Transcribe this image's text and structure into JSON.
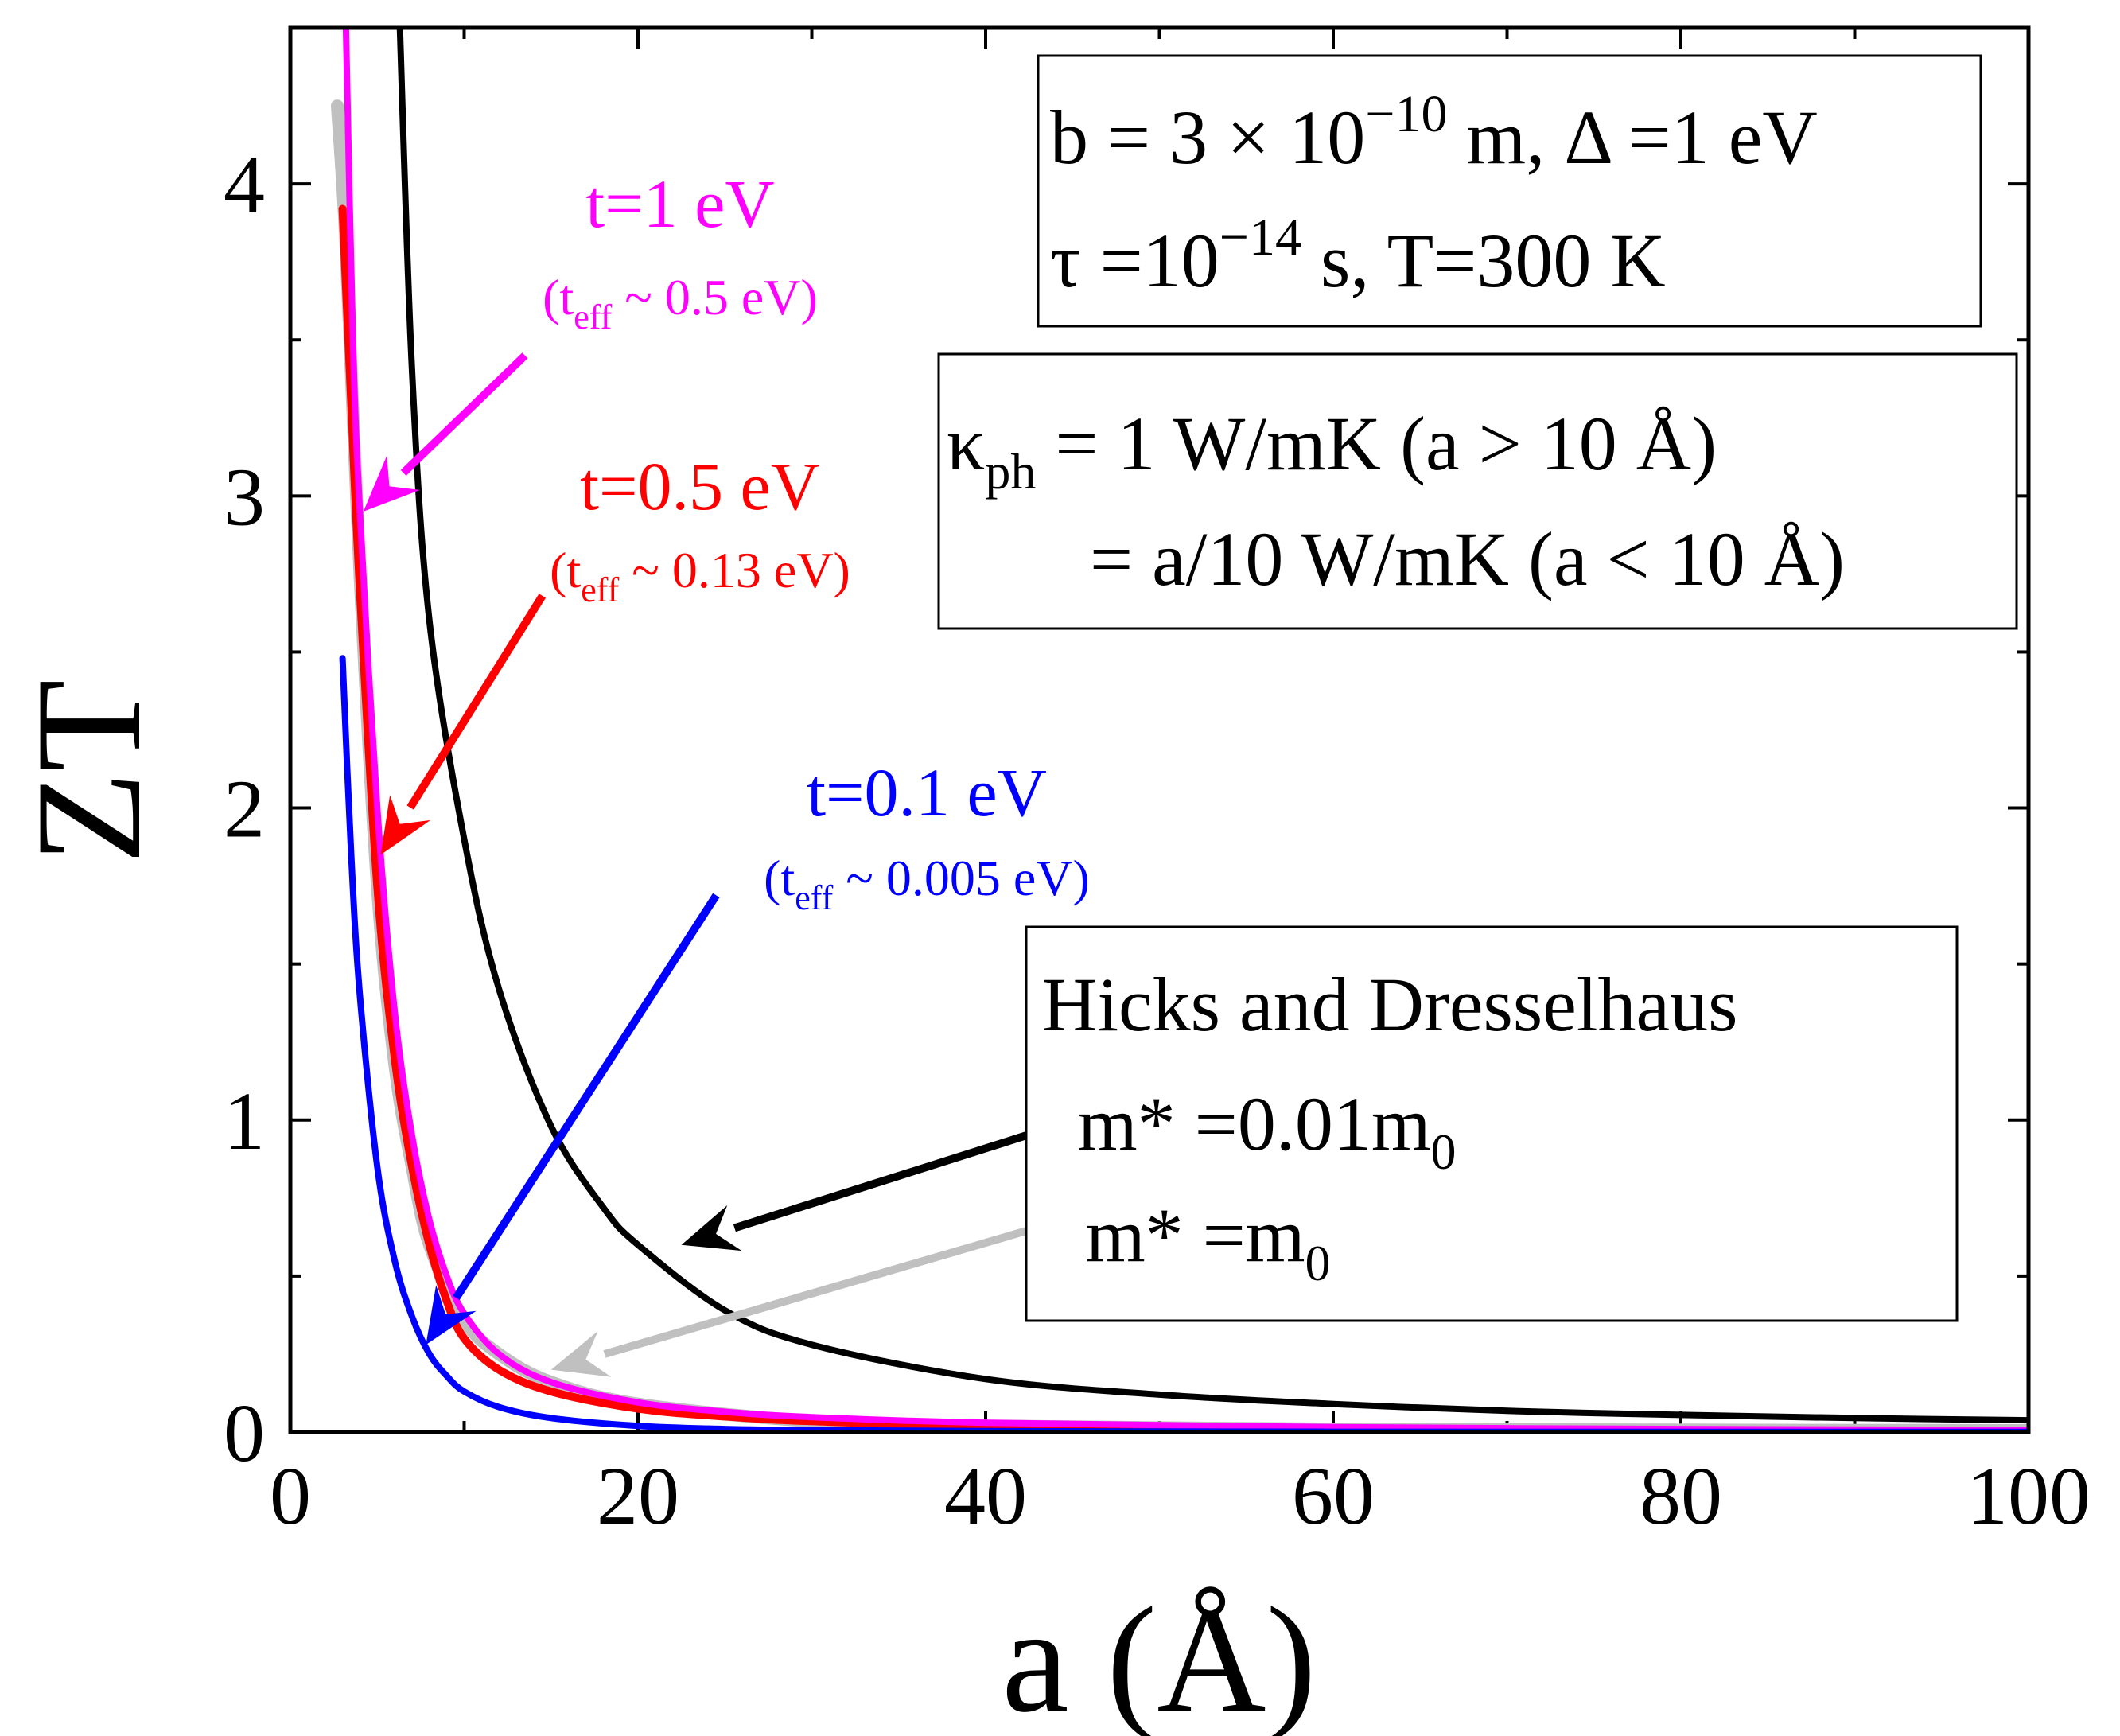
{
  "chart_data": {
    "type": "line",
    "xlabel": "a (Å)",
    "ylabel": "ZT",
    "xlim": [
      0,
      100
    ],
    "ylim": [
      0,
      4.5
    ],
    "x_ticks": [
      0,
      20,
      40,
      60,
      80,
      100
    ],
    "y_ticks": [
      0,
      1,
      2,
      3,
      4
    ],
    "series": [
      {
        "name": "Hicks and Dresselhaus m* = 0.01m0",
        "color": "#000000",
        "x": [
          6.3,
          7,
          8,
          10,
          12,
          15,
          18,
          20,
          25,
          30,
          40,
          50,
          60,
          70,
          80,
          90,
          100
        ],
        "y": [
          4.5,
          3.4,
          2.6,
          1.9,
          1.42,
          0.98,
          0.72,
          0.6,
          0.39,
          0.28,
          0.17,
          0.12,
          0.09,
          0.068,
          0.055,
          0.045,
          0.038
        ]
      },
      {
        "name": "Hicks and Dresselhaus m* = m0",
        "color": "#c0c0c0",
        "x": [
          2.7,
          3.2,
          4,
          5,
          6,
          7,
          8,
          10,
          12,
          15,
          20,
          30,
          40,
          60,
          80,
          100
        ],
        "y": [
          4.25,
          3.8,
          2.75,
          1.75,
          1.18,
          0.85,
          0.6,
          0.36,
          0.25,
          0.16,
          0.09,
          0.035,
          0.02,
          0.01,
          0.007,
          0.005
        ]
      },
      {
        "name": "t=0.5 eV",
        "color": "#ff0000",
        "x": [
          3,
          3.5,
          4,
          5,
          6,
          7,
          8,
          9,
          10,
          12,
          15,
          20,
          25,
          30,
          40,
          60,
          80,
          100
        ],
        "y": [
          3.92,
          3.3,
          2.7,
          1.75,
          1.2,
          0.85,
          0.6,
          0.42,
          0.3,
          0.2,
          0.13,
          0.075,
          0.05,
          0.035,
          0.02,
          0.01,
          0.006,
          0.004
        ]
      },
      {
        "name": "t=1 eV",
        "color": "#ff00ff",
        "x": [
          3.2,
          3.6,
          4,
          5,
          6,
          7,
          8,
          9,
          10,
          12,
          15,
          20,
          25,
          30,
          40,
          60,
          80,
          100
        ],
        "y": [
          4.5,
          3.5,
          2.95,
          2.0,
          1.35,
          0.95,
          0.68,
          0.5,
          0.38,
          0.25,
          0.16,
          0.095,
          0.065,
          0.048,
          0.03,
          0.016,
          0.01,
          0.007
        ]
      },
      {
        "name": "t=0.1 eV",
        "color": "#0000ff",
        "x": [
          3,
          3.5,
          4,
          5,
          6,
          7,
          8,
          9,
          10,
          12,
          15,
          20,
          25,
          30,
          40,
          60,
          100
        ],
        "y": [
          2.48,
          1.85,
          1.4,
          0.85,
          0.55,
          0.37,
          0.25,
          0.18,
          0.13,
          0.08,
          0.045,
          0.02,
          0.01,
          0.006,
          0.003,
          0.001,
          0.0005
        ]
      }
    ],
    "arrows": [
      {
        "name": "t1-arrow",
        "color": "#ff00ff",
        "from": [
          13.5,
          3.45
        ],
        "to": [
          4.2,
          2.95
        ]
      },
      {
        "name": "t05-arrow",
        "color": "#ff0000",
        "from": [
          14.5,
          2.68
        ],
        "to": [
          5.2,
          1.85
        ]
      },
      {
        "name": "t01-arrow",
        "color": "#0000ff",
        "from": [
          24.5,
          1.72
        ],
        "to": [
          7.8,
          0.28
        ]
      },
      {
        "name": "m001-arrow",
        "color": "#000000",
        "from": [
          44,
          0.98
        ],
        "to": [
          22.5,
          0.6
        ]
      },
      {
        "name": "m0-arrow",
        "color": "#c0c0c0",
        "from": [
          44.5,
          0.68
        ],
        "to": [
          15,
          0.2
        ]
      }
    ]
  },
  "annotations": {
    "t1": {
      "main": "t=1 eV",
      "sub_open": "(t",
      "sub_index": "eff",
      "sub_close": " ~ 0.5 eV)"
    },
    "t05": {
      "main": "t=0.5 eV",
      "sub_open": "(t",
      "sub_index": "eff",
      "sub_close": " ~ 0.13 eV)"
    },
    "t01": {
      "main": "t=0.1 eV",
      "sub_open": "(t",
      "sub_index": "eff",
      "sub_close": " ~ 0.005 eV)"
    }
  },
  "params_box": {
    "line1_b": "b = 3 × 10",
    "line1_exp": "−10",
    "line1_rest": " m, Δ =1 eV",
    "line2_tau": "τ =10",
    "line2_exp": "−14",
    "line2_rest": " s, T=300 K"
  },
  "kappa_box": {
    "kappa": "κ",
    "kappa_sub": "ph",
    "line1_rest": " = 1 W/mK (a > 10 Å)",
    "line2": "= a/10 W/mK (a < 10 Å)"
  },
  "hd_box": {
    "title": "Hicks and Dresselhaus",
    "line1": "m* =0.01m",
    "line1_sub": "0",
    "line2": "m* =m",
    "line2_sub": "0"
  }
}
